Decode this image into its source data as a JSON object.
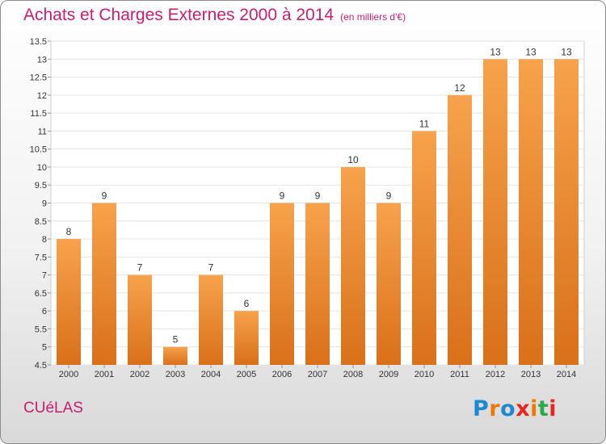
{
  "header": {
    "title": "Achats et Charges Externes 2000 à 2014",
    "subtitle": "(en milliers d'€)"
  },
  "footer": {
    "commune": "CUéLAS",
    "logo_text": "Proxiti",
    "logo_colors": [
      "#1e88d2",
      "#f07800",
      "#1e88d2",
      "#e8261e",
      "#f07800",
      "#2aa84a",
      "#e8261e"
    ]
  },
  "chart_data": {
    "type": "bar",
    "title": "Achats et Charges Externes 2000 à 2014",
    "subtitle": "(en milliers d'€)",
    "categories": [
      "2000",
      "2001",
      "2002",
      "2003",
      "2004",
      "2005",
      "2006",
      "2007",
      "2008",
      "2009",
      "2010",
      "2011",
      "2012",
      "2013",
      "2014"
    ],
    "values": [
      8,
      9,
      7,
      5,
      7,
      6,
      9,
      9,
      10,
      9,
      11,
      12,
      13,
      13,
      13
    ],
    "data_labels": [
      "8",
      "9",
      "7",
      "5",
      "7",
      "6",
      "9",
      "9",
      "10",
      "9",
      "11",
      "12",
      "13",
      "13",
      "13"
    ],
    "ylim": [
      4.5,
      13.5
    ],
    "yticks": [
      "4.5",
      "5",
      "5.5",
      "6",
      "6.5",
      "7",
      "7.5",
      "8",
      "8.5",
      "9",
      "9.5",
      "10",
      "10.5",
      "11",
      "11.5",
      "12",
      "12.5",
      "13",
      "13.5"
    ],
    "grid": true,
    "bar_color_top": "#f7a24c",
    "bar_color_bottom": "#d9701a"
  }
}
